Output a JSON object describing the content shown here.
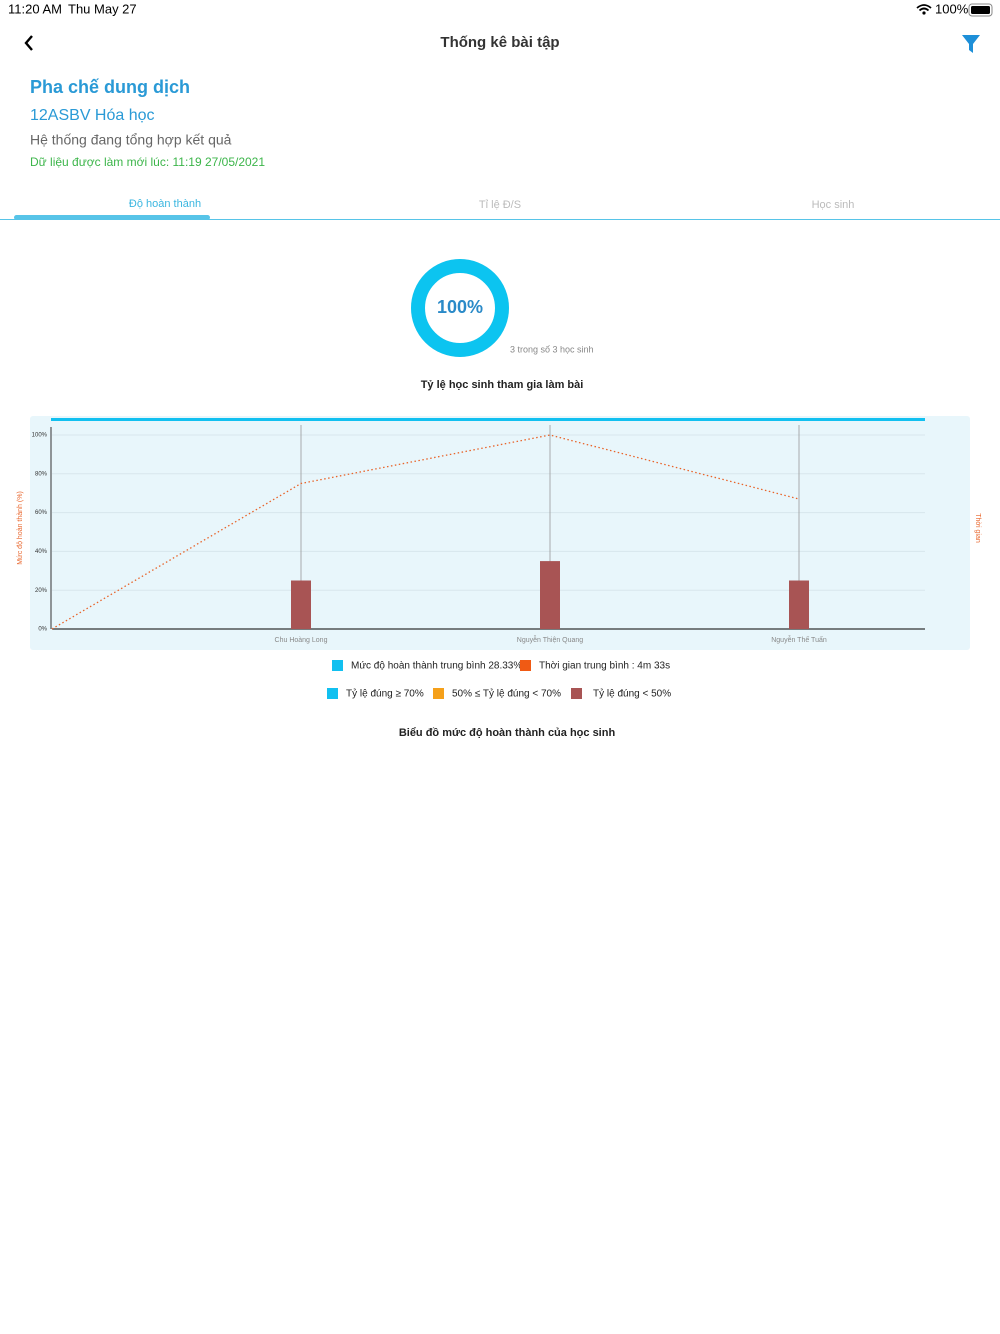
{
  "status_bar": {
    "time": "11:20 AM",
    "date": "Thu May 27",
    "battery": "100%"
  },
  "header": {
    "title": "Thống kê bài tập"
  },
  "info": {
    "lesson": "Pha chế dung dịch",
    "class": "12ASBV Hóa học",
    "status": "Hệ thống đang tổng hợp kết quả",
    "updated": "Dữ liệu được làm mới lúc: 11:19 27/05/2021"
  },
  "tabs": [
    "Độ hoàn thành",
    "Tỉ lệ Đ/S",
    "Học sinh"
  ],
  "chart_data": [
    {
      "type": "donut",
      "title": "Tỷ lệ học sinh tham gia làm bài",
      "subtitle": "3 trong số 3 học sinh",
      "values": [
        100
      ],
      "value_labels": [
        "100%"
      ],
      "color": "#0cc4f0"
    },
    {
      "type": "bar",
      "title": "Biểu đồ mức độ hoàn thành của học sinh",
      "ylabel": "Mức độ hoàn thành (%)",
      "y2label": "Thời gian",
      "categories": [
        null,
        "Chu Hoàng Long",
        "Nguyễn Thiện Quang",
        "Nguyễn Thế Tuấn"
      ],
      "series": [
        {
          "type": "bar",
          "color": "#a85454",
          "values": [
            null,
            25,
            35,
            25
          ]
        },
        {
          "type": "line",
          "color": "#e8642a",
          "values": [
            0,
            75,
            100,
            67
          ]
        }
      ],
      "ylim": [
        0,
        100
      ],
      "yticks": [
        {
          "value": 0,
          "label": "0%"
        },
        {
          "value": 20,
          "label": "20%"
        },
        {
          "value": 40,
          "label": "40%"
        },
        {
          "value": 60,
          "label": "60%"
        },
        {
          "value": 80,
          "label": "80%"
        },
        {
          "value": 100,
          "label": "100%"
        }
      ],
      "grid": true,
      "legend": [
        {
          "name": "Mức độ hoàn thành trung bình 28.33%",
          "color": "#11c0f0"
        },
        {
          "name": "Thời gian trung bình : 4m 33s",
          "color": "#f05a14"
        },
        {
          "name": "Tỷ lệ đúng ≥ 70%",
          "color": "#11c0f0"
        },
        {
          "name": "50% ≤ Tỷ lệ đúng < 70%",
          "color": "#f5a01a"
        },
        {
          "name": "Tỷ lệ đúng < 50%",
          "color": "#a85454"
        }
      ]
    }
  ]
}
